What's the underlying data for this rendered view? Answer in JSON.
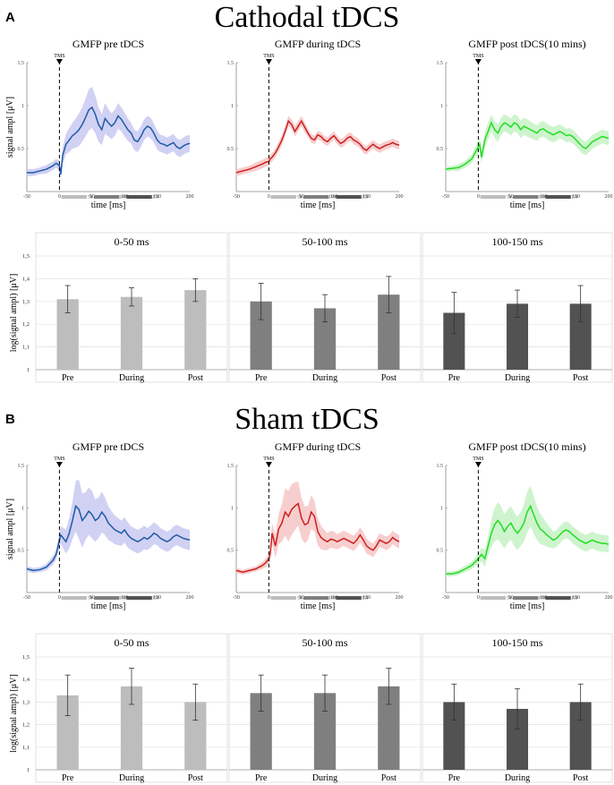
{
  "figure": {
    "axis_ylabel_gmfp": "signal ampl [μV]",
    "axis_xlabel_gmfp": "time [ms]",
    "axis_ylabel_bar": "log(signal ampl) [μV]",
    "tms_label": "TMS",
    "window_tick_labels": [
      "50",
      "100",
      "150"
    ],
    "window_colors": [
      "#bdbdbd",
      "#7f7f7f",
      "#525252"
    ],
    "condition_colors": {
      "pre": "#1f5aa6",
      "during": "#cc1f1f",
      "post": "#22dd22"
    },
    "band_colors": {
      "pre": "#c9c9f2",
      "during": "#f6c6c6",
      "post": "#c6f2c6"
    }
  },
  "sections": [
    {
      "letter": "A",
      "title": "Cathodal tDCS"
    },
    {
      "letter": "B",
      "title": "Sham tDCS"
    }
  ],
  "chart_data": [
    {
      "id": "A-pre",
      "type": "line",
      "title": "GMFP pre tDCS",
      "xlabel": "time [ms]",
      "ylabel": "signal ampl [μV]",
      "xlim": [
        -50,
        200
      ],
      "ylim": [
        0,
        1.5
      ],
      "xticks": [
        -50,
        0,
        50,
        100,
        150,
        200
      ],
      "yticks": [
        0.5,
        1,
        1.5
      ],
      "event_marker": {
        "x": 0,
        "label": "TMS"
      },
      "condition": "pre",
      "x": [
        -50,
        -40,
        -30,
        -20,
        -10,
        -5,
        0,
        2,
        5,
        10,
        15,
        20,
        25,
        30,
        35,
        40,
        45,
        50,
        55,
        60,
        65,
        70,
        75,
        80,
        85,
        90,
        95,
        100,
        105,
        110,
        115,
        120,
        125,
        130,
        135,
        140,
        145,
        150,
        155,
        160,
        165,
        170,
        175,
        180,
        185,
        190,
        195,
        200
      ],
      "y": [
        0.22,
        0.22,
        0.24,
        0.26,
        0.3,
        0.33,
        0.3,
        0.2,
        0.42,
        0.55,
        0.6,
        0.65,
        0.68,
        0.72,
        0.78,
        0.86,
        0.95,
        0.98,
        0.9,
        0.78,
        0.72,
        0.85,
        0.8,
        0.76,
        0.8,
        0.88,
        0.84,
        0.78,
        0.72,
        0.68,
        0.6,
        0.58,
        0.64,
        0.72,
        0.76,
        0.74,
        0.68,
        0.6,
        0.56,
        0.55,
        0.53,
        0.55,
        0.57,
        0.52,
        0.5,
        0.53,
        0.55,
        0.56
      ],
      "band": [
        0.04,
        0.04,
        0.04,
        0.05,
        0.05,
        0.05,
        0.06,
        0.06,
        0.1,
        0.12,
        0.14,
        0.15,
        0.17,
        0.19,
        0.2,
        0.22,
        0.24,
        0.24,
        0.22,
        0.2,
        0.18,
        0.18,
        0.16,
        0.15,
        0.15,
        0.15,
        0.14,
        0.14,
        0.13,
        0.12,
        0.12,
        0.12,
        0.12,
        0.12,
        0.12,
        0.12,
        0.11,
        0.11,
        0.1,
        0.1,
        0.1,
        0.1,
        0.1,
        0.1,
        0.1,
        0.1,
        0.1,
        0.1
      ]
    },
    {
      "id": "A-during",
      "type": "line",
      "title": "GMFP during tDCS",
      "xlabel": "time [ms]",
      "ylabel": "signal ampl [μV]",
      "xlim": [
        -50,
        200
      ],
      "ylim": [
        0,
        1.5
      ],
      "xticks": [
        -50,
        0,
        50,
        100,
        150,
        200
      ],
      "yticks": [
        0.5,
        1,
        1.5
      ],
      "event_marker": {
        "x": 0,
        "label": "TMS"
      },
      "condition": "during",
      "x": [
        -50,
        -40,
        -30,
        -20,
        -10,
        -5,
        0,
        2,
        5,
        10,
        15,
        20,
        25,
        30,
        35,
        40,
        45,
        50,
        55,
        60,
        65,
        70,
        75,
        80,
        85,
        90,
        95,
        100,
        105,
        110,
        115,
        120,
        125,
        130,
        135,
        140,
        145,
        150,
        155,
        160,
        165,
        170,
        175,
        180,
        185,
        190,
        195,
        200
      ],
      "y": [
        0.22,
        0.24,
        0.26,
        0.29,
        0.32,
        0.34,
        0.35,
        0.38,
        0.4,
        0.45,
        0.52,
        0.6,
        0.7,
        0.82,
        0.78,
        0.7,
        0.76,
        0.82,
        0.75,
        0.68,
        0.62,
        0.6,
        0.66,
        0.64,
        0.6,
        0.58,
        0.62,
        0.65,
        0.6,
        0.56,
        0.58,
        0.62,
        0.64,
        0.6,
        0.58,
        0.55,
        0.5,
        0.48,
        0.52,
        0.55,
        0.52,
        0.5,
        0.52,
        0.54,
        0.55,
        0.57,
        0.55,
        0.54
      ],
      "band": [
        0.04,
        0.04,
        0.04,
        0.05,
        0.05,
        0.05,
        0.05,
        0.05,
        0.05,
        0.05,
        0.06,
        0.06,
        0.06,
        0.06,
        0.06,
        0.06,
        0.06,
        0.06,
        0.06,
        0.05,
        0.05,
        0.05,
        0.05,
        0.05,
        0.05,
        0.05,
        0.05,
        0.05,
        0.05,
        0.05,
        0.05,
        0.05,
        0.05,
        0.05,
        0.05,
        0.05,
        0.05,
        0.05,
        0.05,
        0.05,
        0.05,
        0.05,
        0.05,
        0.05,
        0.05,
        0.05,
        0.05,
        0.05
      ]
    },
    {
      "id": "A-post",
      "type": "line",
      "title": "GMFP post tDCS(10 mins)",
      "xlabel": "time [ms]",
      "ylabel": "signal ampl [μV]",
      "xlim": [
        -50,
        200
      ],
      "ylim": [
        0,
        1.5
      ],
      "xticks": [
        -50,
        0,
        50,
        100,
        150,
        200
      ],
      "yticks": [
        0.5,
        1,
        1.5
      ],
      "event_marker": {
        "x": 0,
        "label": "TMS"
      },
      "condition": "post",
      "x": [
        -50,
        -40,
        -30,
        -20,
        -10,
        -5,
        0,
        2,
        5,
        10,
        15,
        20,
        25,
        30,
        35,
        40,
        45,
        50,
        55,
        60,
        65,
        70,
        75,
        80,
        85,
        90,
        95,
        100,
        105,
        110,
        115,
        120,
        125,
        130,
        135,
        140,
        145,
        150,
        155,
        160,
        165,
        170,
        175,
        180,
        185,
        190,
        195,
        200
      ],
      "y": [
        0.26,
        0.27,
        0.28,
        0.32,
        0.38,
        0.45,
        0.52,
        0.55,
        0.4,
        0.6,
        0.7,
        0.8,
        0.72,
        0.68,
        0.76,
        0.8,
        0.78,
        0.75,
        0.8,
        0.78,
        0.72,
        0.76,
        0.74,
        0.72,
        0.7,
        0.68,
        0.72,
        0.73,
        0.7,
        0.68,
        0.66,
        0.68,
        0.7,
        0.68,
        0.65,
        0.66,
        0.64,
        0.6,
        0.56,
        0.52,
        0.5,
        0.54,
        0.58,
        0.6,
        0.62,
        0.64,
        0.63,
        0.62
      ],
      "band": [
        0.03,
        0.03,
        0.04,
        0.04,
        0.05,
        0.06,
        0.07,
        0.07,
        0.08,
        0.09,
        0.1,
        0.1,
        0.1,
        0.1,
        0.1,
        0.1,
        0.1,
        0.1,
        0.1,
        0.1,
        0.1,
        0.1,
        0.1,
        0.1,
        0.09,
        0.09,
        0.09,
        0.09,
        0.09,
        0.09,
        0.09,
        0.09,
        0.08,
        0.08,
        0.08,
        0.08,
        0.08,
        0.08,
        0.08,
        0.08,
        0.08,
        0.08,
        0.08,
        0.08,
        0.08,
        0.08,
        0.08,
        0.08
      ]
    },
    {
      "id": "A-bar-0-50",
      "type": "bar",
      "title": "0-50 ms",
      "categories": [
        "Pre",
        "During",
        "Post"
      ],
      "values": [
        1.31,
        1.32,
        1.35
      ],
      "errors": [
        0.06,
        0.04,
        0.05
      ],
      "ylabel": "log(signal ampl) [μV]",
      "ylim": [
        1,
        1.5
      ],
      "yticks": [
        "1",
        "1,1",
        "1,2",
        "1,3",
        "1,4",
        "1,5"
      ],
      "color_index": 0
    },
    {
      "id": "A-bar-50-100",
      "type": "bar",
      "title": "50-100 ms",
      "categories": [
        "Pre",
        "During",
        "Post"
      ],
      "values": [
        1.3,
        1.27,
        1.33
      ],
      "errors": [
        0.08,
        0.06,
        0.08
      ],
      "ylim": [
        1,
        1.5
      ],
      "color_index": 1
    },
    {
      "id": "A-bar-100-150",
      "type": "bar",
      "title": "100-150 ms",
      "categories": [
        "Pre",
        "During",
        "Post"
      ],
      "values": [
        1.25,
        1.29,
        1.29
      ],
      "errors": [
        0.09,
        0.06,
        0.08
      ],
      "ylim": [
        1,
        1.5
      ],
      "color_index": 2
    },
    {
      "id": "B-pre",
      "type": "line",
      "title": "GMFP pre tDCS",
      "xlabel": "time [ms]",
      "ylabel": "signal ampl [μV]",
      "xlim": [
        -50,
        200
      ],
      "ylim": [
        0,
        1.5
      ],
      "xticks": [
        -50,
        0,
        50,
        100,
        150,
        200
      ],
      "yticks": [
        0.5,
        1,
        1.5
      ],
      "event_marker": {
        "x": 0,
        "label": "TMS"
      },
      "condition": "pre",
      "x": [
        -50,
        -40,
        -30,
        -20,
        -10,
        -5,
        0,
        2,
        5,
        10,
        15,
        20,
        25,
        30,
        35,
        40,
        45,
        50,
        55,
        60,
        65,
        70,
        75,
        80,
        85,
        90,
        95,
        100,
        105,
        110,
        115,
        120,
        125,
        130,
        135,
        140,
        145,
        150,
        155,
        160,
        165,
        170,
        175,
        180,
        185,
        190,
        195,
        200
      ],
      "y": [
        0.28,
        0.26,
        0.27,
        0.3,
        0.38,
        0.45,
        0.62,
        0.68,
        0.65,
        0.6,
        0.7,
        0.85,
        1.02,
        0.98,
        0.85,
        0.9,
        0.96,
        0.92,
        0.85,
        0.88,
        0.95,
        0.9,
        0.82,
        0.78,
        0.74,
        0.72,
        0.7,
        0.74,
        0.68,
        0.64,
        0.62,
        0.6,
        0.62,
        0.65,
        0.63,
        0.66,
        0.7,
        0.68,
        0.64,
        0.62,
        0.6,
        0.62,
        0.66,
        0.68,
        0.66,
        0.64,
        0.63,
        0.62
      ],
      "band": [
        0.03,
        0.03,
        0.03,
        0.04,
        0.05,
        0.06,
        0.08,
        0.1,
        0.12,
        0.14,
        0.18,
        0.22,
        0.3,
        0.35,
        0.32,
        0.28,
        0.28,
        0.28,
        0.25,
        0.24,
        0.24,
        0.22,
        0.2,
        0.18,
        0.17,
        0.16,
        0.15,
        0.15,
        0.15,
        0.14,
        0.14,
        0.14,
        0.14,
        0.14,
        0.13,
        0.13,
        0.13,
        0.12,
        0.12,
        0.12,
        0.12,
        0.12,
        0.12,
        0.12,
        0.12,
        0.12,
        0.12,
        0.12
      ]
    },
    {
      "id": "B-during",
      "type": "line",
      "title": "GMFP during tDCS",
      "xlabel": "time [ms]",
      "ylabel": "signal ampl [μV]",
      "xlim": [
        -50,
        200
      ],
      "ylim": [
        0,
        1.5
      ],
      "xticks": [
        -50,
        0,
        50,
        100,
        150,
        200
      ],
      "yticks": [
        0.5,
        1,
        1.5
      ],
      "event_marker": {
        "x": 0,
        "label": "TMS"
      },
      "condition": "during",
      "x": [
        -50,
        -40,
        -30,
        -20,
        -10,
        -5,
        0,
        2,
        5,
        10,
        15,
        20,
        25,
        30,
        35,
        40,
        45,
        50,
        55,
        60,
        65,
        70,
        75,
        80,
        85,
        90,
        95,
        100,
        105,
        110,
        115,
        120,
        125,
        130,
        135,
        140,
        145,
        150,
        155,
        160,
        165,
        170,
        175,
        180,
        185,
        190,
        195,
        200
      ],
      "y": [
        0.26,
        0.24,
        0.26,
        0.28,
        0.32,
        0.35,
        0.4,
        0.45,
        0.7,
        0.55,
        0.75,
        0.82,
        0.95,
        0.9,
        0.98,
        1.02,
        1.05,
        0.88,
        0.8,
        0.82,
        0.95,
        0.9,
        0.72,
        0.65,
        0.62,
        0.6,
        0.63,
        0.62,
        0.6,
        0.62,
        0.64,
        0.62,
        0.6,
        0.58,
        0.62,
        0.68,
        0.62,
        0.55,
        0.52,
        0.5,
        0.55,
        0.62,
        0.6,
        0.58,
        0.6,
        0.65,
        0.62,
        0.6
      ],
      "band": [
        0.03,
        0.03,
        0.03,
        0.03,
        0.04,
        0.05,
        0.06,
        0.08,
        0.12,
        0.14,
        0.18,
        0.22,
        0.28,
        0.3,
        0.3,
        0.28,
        0.26,
        0.24,
        0.22,
        0.2,
        0.2,
        0.18,
        0.16,
        0.14,
        0.12,
        0.1,
        0.1,
        0.1,
        0.09,
        0.09,
        0.09,
        0.09,
        0.09,
        0.09,
        0.09,
        0.09,
        0.09,
        0.09,
        0.08,
        0.08,
        0.08,
        0.08,
        0.08,
        0.08,
        0.08,
        0.08,
        0.08,
        0.08
      ]
    },
    {
      "id": "B-post",
      "type": "line",
      "title": "GMFP post tDCS(10 mins)",
      "xlabel": "time [ms]",
      "ylabel": "signal ampl [μV]",
      "xlim": [
        -50,
        200
      ],
      "ylim": [
        0,
        1.5
      ],
      "xticks": [
        -50,
        0,
        50,
        100,
        150,
        200
      ],
      "yticks": [
        0.5,
        1,
        1.5
      ],
      "event_marker": {
        "x": 0,
        "label": "TMS"
      },
      "condition": "post",
      "x": [
        -50,
        -40,
        -30,
        -20,
        -10,
        -5,
        0,
        2,
        5,
        10,
        15,
        20,
        25,
        30,
        35,
        40,
        45,
        50,
        55,
        60,
        65,
        70,
        75,
        80,
        85,
        90,
        95,
        100,
        105,
        110,
        115,
        120,
        125,
        130,
        135,
        140,
        145,
        150,
        155,
        160,
        165,
        170,
        175,
        180,
        185,
        190,
        195,
        200
      ],
      "y": [
        0.22,
        0.22,
        0.24,
        0.28,
        0.32,
        0.36,
        0.4,
        0.42,
        0.45,
        0.4,
        0.55,
        0.7,
        0.8,
        0.85,
        0.8,
        0.72,
        0.78,
        0.82,
        0.75,
        0.7,
        0.75,
        0.82,
        0.95,
        1.02,
        0.92,
        0.82,
        0.75,
        0.72,
        0.68,
        0.65,
        0.62,
        0.64,
        0.68,
        0.72,
        0.74,
        0.72,
        0.68,
        0.65,
        0.62,
        0.6,
        0.58,
        0.6,
        0.62,
        0.6,
        0.59,
        0.58,
        0.58,
        0.57
      ],
      "band": [
        0.03,
        0.03,
        0.03,
        0.04,
        0.04,
        0.05,
        0.06,
        0.07,
        0.08,
        0.1,
        0.12,
        0.16,
        0.2,
        0.22,
        0.22,
        0.2,
        0.2,
        0.2,
        0.2,
        0.2,
        0.2,
        0.22,
        0.24,
        0.24,
        0.22,
        0.2,
        0.18,
        0.16,
        0.14,
        0.12,
        0.1,
        0.1,
        0.1,
        0.1,
        0.1,
        0.1,
        0.1,
        0.1,
        0.1,
        0.1,
        0.1,
        0.1,
        0.1,
        0.1,
        0.1,
        0.1,
        0.1,
        0.1
      ]
    },
    {
      "id": "B-bar-0-50",
      "type": "bar",
      "title": "0-50 ms",
      "categories": [
        "Pre",
        "During",
        "Post"
      ],
      "values": [
        1.33,
        1.37,
        1.3
      ],
      "errors": [
        0.09,
        0.08,
        0.08
      ],
      "ylabel": "log(signal ampl) [μV]",
      "ylim": [
        1,
        1.5
      ],
      "yticks": [
        "1",
        "1,1",
        "1,2",
        "1,3",
        "1,4",
        "1,5"
      ],
      "color_index": 0
    },
    {
      "id": "B-bar-50-100",
      "type": "bar",
      "title": "50-100 ms",
      "categories": [
        "Pre",
        "During",
        "Post"
      ],
      "values": [
        1.34,
        1.34,
        1.37
      ],
      "errors": [
        0.08,
        0.08,
        0.08
      ],
      "ylim": [
        1,
        1.5
      ],
      "color_index": 1
    },
    {
      "id": "B-bar-100-150",
      "type": "bar",
      "title": "100-150 ms",
      "categories": [
        "Pre",
        "During",
        "Post"
      ],
      "values": [
        1.3,
        1.27,
        1.3
      ],
      "errors": [
        0.08,
        0.09,
        0.08
      ],
      "ylim": [
        1,
        1.5
      ],
      "color_index": 2
    }
  ]
}
